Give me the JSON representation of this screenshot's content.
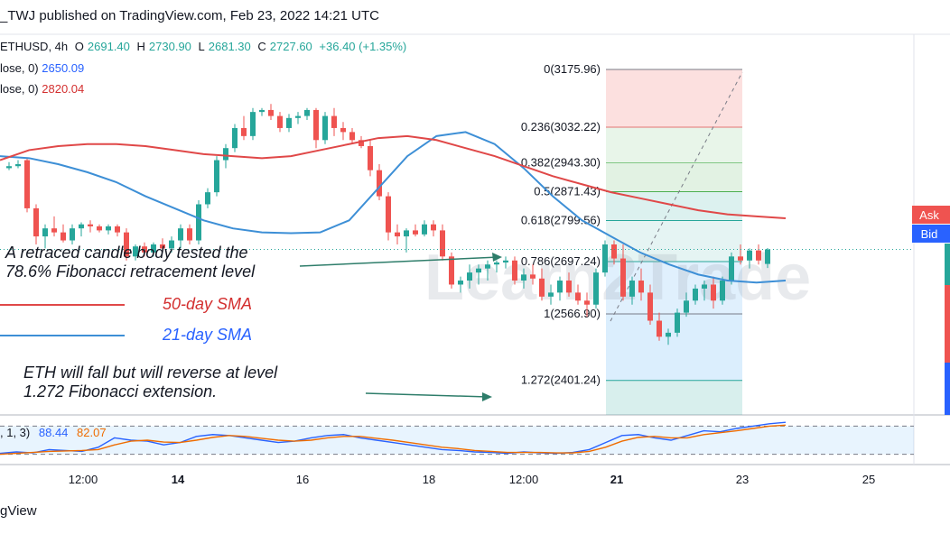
{
  "header": {
    "title": "_TWJ published on TradingView.com, Feb 23, 2022 14:21 UTC"
  },
  "ohlc": {
    "symbol": "ETHUSD, 4h",
    "o_label": "O",
    "o_value": "2691.40",
    "h_label": "H",
    "h_value": "2730.90",
    "l_label": "L",
    "l_value": "2681.30",
    "c_label": "C",
    "c_value": "2727.60",
    "change": "+36.40 (+1.35%)"
  },
  "indicators": [
    {
      "label": "lose, 0)",
      "value": "2650.09",
      "color": "#2962ff"
    },
    {
      "label": "lose, 0)",
      "value": "2820.04",
      "color": "#d32f2f"
    }
  ],
  "stoch": {
    "label": ", 1, 3)",
    "k": "88.44",
    "d": "82.07",
    "k_color": "#2962ff",
    "d_color": "#ef6c00"
  },
  "fib_levels": [
    {
      "label": "0(3175.96)",
      "price": 3175.96,
      "color": "#787b86"
    },
    {
      "label": "0.236(3032.22)",
      "price": 3032.22,
      "color": "#e57373"
    },
    {
      "label": "0.382(2943.30)",
      "price": 2943.3,
      "color": "#81c784"
    },
    {
      "label": "0.5(2871.43)",
      "price": 2871.43,
      "color": "#4caf50"
    },
    {
      "label": "0.618(2799.56)",
      "price": 2799.56,
      "color": "#26a69a"
    },
    {
      "label": "0.786(2697.24)",
      "price": 2697.24,
      "color": "#26a69a"
    },
    {
      "label": "1(2566.90)",
      "price": 2566.9,
      "color": "#787b86"
    },
    {
      "label": "1.272(2401.24)",
      "price": 2401.24,
      "color": "#26a69a"
    }
  ],
  "annotations": {
    "retrace": "A retraced candle body tested the\n78.6% Fibonacci retracement level",
    "sma50": "50-day SMA",
    "sma21": "21-day SMA",
    "reverse": "ETH will fall but will reverse at level\n1.272 Fibonacci extension."
  },
  "right_axis": {
    "ask": "Ask",
    "bid": "Bid"
  },
  "watermark": "Learn2Trade",
  "footer": "gView",
  "colors": {
    "up": "#26a69a",
    "down": "#ef5350",
    "sma50": "#e04848",
    "sma21": "#3d8fd6"
  },
  "chart_data": {
    "type": "candlestick",
    "symbol": "ETHUSD",
    "timeframe": "4h",
    "x_ticks": [
      "12:00",
      "14",
      "16",
      "18",
      "12:00",
      "21",
      "23",
      "25"
    ],
    "candles": [
      [
        2930,
        2945,
        2925,
        2935
      ],
      [
        2935,
        2950,
        2930,
        2940
      ],
      [
        2950,
        2955,
        2820,
        2830
      ],
      [
        2830,
        2840,
        2740,
        2760
      ],
      [
        2760,
        2790,
        2730,
        2780
      ],
      [
        2780,
        2810,
        2760,
        2770
      ],
      [
        2770,
        2790,
        2745,
        2750
      ],
      [
        2750,
        2790,
        2740,
        2780
      ],
      [
        2780,
        2795,
        2760,
        2790
      ],
      [
        2790,
        2800,
        2770,
        2785
      ],
      [
        2785,
        2790,
        2770,
        2775
      ],
      [
        2775,
        2790,
        2765,
        2785
      ],
      [
        2785,
        2790,
        2760,
        2770
      ],
      [
        2770,
        2780,
        2700,
        2710
      ],
      [
        2710,
        2740,
        2700,
        2735
      ],
      [
        2735,
        2745,
        2710,
        2720
      ],
      [
        2720,
        2745,
        2710,
        2740
      ],
      [
        2740,
        2755,
        2720,
        2730
      ],
      [
        2730,
        2760,
        2720,
        2750
      ],
      [
        2750,
        2790,
        2730,
        2780
      ],
      [
        2780,
        2790,
        2740,
        2750
      ],
      [
        2750,
        2850,
        2740,
        2840
      ],
      [
        2840,
        2880,
        2830,
        2870
      ],
      [
        2870,
        2960,
        2860,
        2950
      ],
      [
        2950,
        2990,
        2930,
        2980
      ],
      [
        2980,
        3040,
        2970,
        3030
      ],
      [
        3030,
        3060,
        3000,
        3010
      ],
      [
        3010,
        3080,
        3000,
        3070
      ],
      [
        3070,
        3080,
        3060,
        3075
      ],
      [
        3075,
        3090,
        3050,
        3060
      ],
      [
        3060,
        3070,
        3020,
        3030
      ],
      [
        3030,
        3065,
        3020,
        3055
      ],
      [
        3055,
        3070,
        3040,
        3060
      ],
      [
        3060,
        3080,
        3050,
        3075
      ],
      [
        3075,
        3080,
        2980,
        3000
      ],
      [
        3000,
        3070,
        2990,
        3060
      ],
      [
        3060,
        3080,
        3010,
        3030
      ],
      [
        3030,
        3045,
        3000,
        3020
      ],
      [
        3020,
        3030,
        2990,
        3000
      ],
      [
        3000,
        3010,
        2980,
        2985
      ],
      [
        2985,
        3000,
        2910,
        2925
      ],
      [
        2925,
        2940,
        2850,
        2860
      ],
      [
        2860,
        2870,
        2750,
        2770
      ],
      [
        2770,
        2790,
        2740,
        2760
      ],
      [
        2760,
        2780,
        2720,
        2775
      ],
      [
        2775,
        2790,
        2760,
        2765
      ],
      [
        2765,
        2800,
        2760,
        2790
      ],
      [
        2790,
        2800,
        2760,
        2775
      ],
      [
        2775,
        2790,
        2700,
        2710
      ],
      [
        2710,
        2720,
        2630,
        2640
      ],
      [
        2640,
        2660,
        2620,
        2650
      ],
      [
        2650,
        2690,
        2630,
        2670
      ],
      [
        2670,
        2690,
        2640,
        2680
      ],
      [
        2680,
        2700,
        2650,
        2690
      ],
      [
        2690,
        2700,
        2670,
        2695
      ],
      [
        2695,
        2710,
        2680,
        2700
      ],
      [
        2700,
        2710,
        2640,
        2650
      ],
      [
        2650,
        2680,
        2630,
        2665
      ],
      [
        2665,
        2690,
        2640,
        2655
      ],
      [
        2655,
        2680,
        2600,
        2610
      ],
      [
        2610,
        2640,
        2590,
        2620
      ],
      [
        2620,
        2660,
        2600,
        2650
      ],
      [
        2650,
        2670,
        2610,
        2620
      ],
      [
        2620,
        2640,
        2590,
        2600
      ],
      [
        2600,
        2620,
        2560,
        2590
      ],
      [
        2590,
        2680,
        2580,
        2670
      ],
      [
        2670,
        2750,
        2660,
        2740
      ],
      [
        2740,
        2750,
        2690,
        2705
      ],
      [
        2705,
        2740,
        2600,
        2610
      ],
      [
        2610,
        2660,
        2590,
        2650
      ],
      [
        2650,
        2680,
        2600,
        2620
      ],
      [
        2620,
        2640,
        2540,
        2550
      ],
      [
        2550,
        2570,
        2500,
        2510
      ],
      [
        2510,
        2530,
        2490,
        2520
      ],
      [
        2520,
        2580,
        2510,
        2570
      ],
      [
        2570,
        2620,
        2560,
        2600
      ],
      [
        2600,
        2640,
        2590,
        2630
      ],
      [
        2630,
        2650,
        2600,
        2640
      ],
      [
        2640,
        2660,
        2580,
        2600
      ],
      [
        2600,
        2660,
        2590,
        2650
      ],
      [
        2650,
        2720,
        2640,
        2710
      ],
      [
        2710,
        2740,
        2690,
        2700
      ],
      [
        2700,
        2730,
        2680,
        2725
      ],
      [
        2725,
        2740,
        2690,
        2700
      ],
      [
        2691.4,
        2730.9,
        2681.3,
        2727.6
      ]
    ],
    "sma21": [
      2960,
      2955,
      2940,
      2920,
      2895,
      2860,
      2830,
      2800,
      2780,
      2770,
      2768,
      2770,
      2800,
      2880,
      2960,
      3010,
      3020,
      2990,
      2930,
      2860,
      2800,
      2760,
      2720,
      2690,
      2665,
      2650,
      2645,
      2650
    ],
    "sma50": [
      2950,
      2975,
      2985,
      2990,
      2990,
      2985,
      2975,
      2965,
      2960,
      2955,
      2960,
      2975,
      2990,
      3005,
      3010,
      3000,
      2980,
      2960,
      2935,
      2910,
      2890,
      2870,
      2855,
      2840,
      2825,
      2815,
      2810,
      2805
    ],
    "stoch_k": [
      22,
      25,
      23,
      30,
      28,
      26,
      35,
      55,
      50,
      48,
      40,
      45,
      58,
      62,
      60,
      55,
      50,
      45,
      48,
      55,
      60,
      62,
      55,
      50,
      45,
      40,
      35,
      30,
      28,
      25,
      24,
      22,
      25,
      23,
      22,
      24,
      30,
      45,
      60,
      62,
      55,
      50,
      60,
      70,
      68,
      75,
      80,
      85,
      88
    ],
    "stoch_d": [
      20,
      22,
      24,
      26,
      27,
      28,
      30,
      40,
      48,
      50,
      46,
      45,
      50,
      56,
      60,
      58,
      54,
      50,
      48,
      50,
      55,
      58,
      58,
      54,
      50,
      45,
      40,
      35,
      32,
      28,
      26,
      24,
      24,
      24,
      23,
      23,
      26,
      35,
      48,
      56,
      58,
      55,
      55,
      62,
      66,
      70,
      75,
      80,
      82
    ],
    "y_unit": "USD"
  }
}
